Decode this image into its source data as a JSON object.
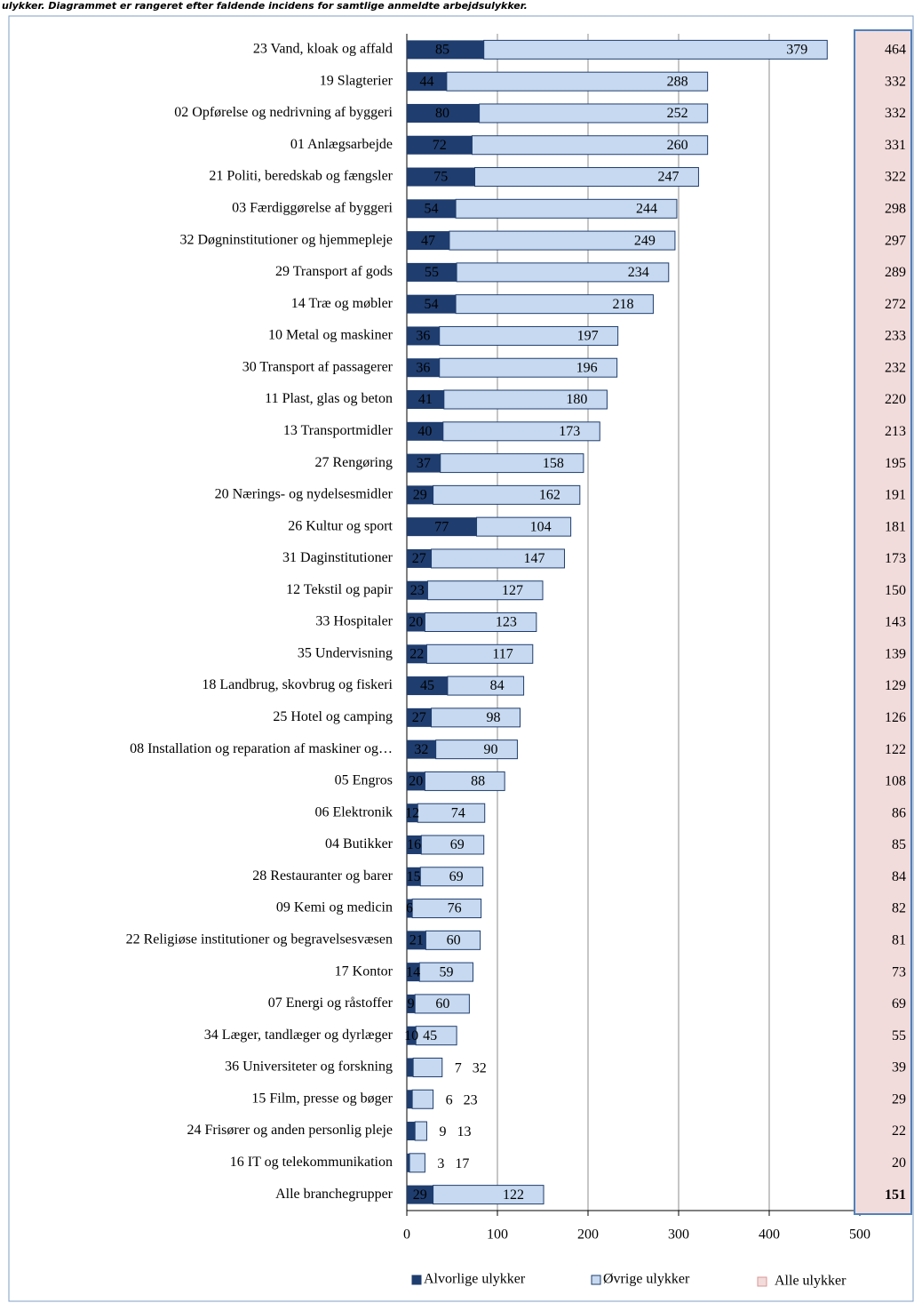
{
  "caption": "ulykker. Diagrammet er rangeret efter faldende incidens for samtlige anmeldte arbejdsulykker.",
  "chart_data": {
    "type": "stacked-barh",
    "categories": [
      "23 Vand, kloak og affald",
      "19 Slagterier",
      "02 Opførelse og nedrivning af byggeri",
      "01 Anlægsarbejde",
      "21 Politi, beredskab og fængsler",
      "03 Færdiggørelse af byggeri",
      "32 Døgninstitutioner og hjemmepleje",
      "29 Transport af gods",
      "14 Træ og møbler",
      "10 Metal og maskiner",
      "30 Transport af passagerer",
      "11 Plast, glas og beton",
      "13 Transportmidler",
      "27 Rengøring",
      "20 Nærings- og nydelsesmidler",
      "26 Kultur og sport",
      "31 Daginstitutioner",
      "12 Tekstil og papir",
      "33 Hospitaler",
      "35 Undervisning",
      "18 Landbrug, skovbrug og fiskeri",
      "25 Hotel og camping",
      "08 Installation og reparation af maskiner og…",
      "05 Engros",
      "06 Elektronik",
      "04 Butikker",
      "28 Restauranter og barer",
      "09 Kemi og medicin",
      "22 Religiøse institutioner og begravelsesvæsen",
      "17 Kontor",
      "07 Energi og råstoffer",
      "34 Læger, tandlæger og dyrlæger",
      "36 Universiteter og forskning",
      "15 Film, presse og bøger",
      "24 Frisører og anden personlig pleje",
      "16 IT og telekommunikation",
      "Alle branchegrupper"
    ],
    "series": [
      {
        "name": "Alvorlige ulykker",
        "color": "#1f3d6e",
        "values": [
          85,
          44,
          80,
          72,
          75,
          54,
          47,
          55,
          54,
          36,
          36,
          41,
          40,
          37,
          29,
          77,
          27,
          23,
          20,
          22,
          45,
          27,
          32,
          20,
          12,
          16,
          15,
          6,
          21,
          14,
          9,
          10,
          7,
          6,
          9,
          3,
          29
        ]
      },
      {
        "name": "Øvrige ulykker",
        "color": "#c6d9f0",
        "values": [
          379,
          288,
          252,
          260,
          247,
          244,
          249,
          234,
          218,
          197,
          196,
          180,
          173,
          158,
          162,
          104,
          147,
          127,
          123,
          117,
          84,
          98,
          90,
          88,
          74,
          69,
          69,
          76,
          60,
          59,
          60,
          45,
          32,
          23,
          13,
          17,
          122
        ]
      }
    ],
    "totals": {
      "name": "Alle ulykker",
      "color": "#f2dcdb",
      "values": [
        464,
        332,
        332,
        331,
        322,
        298,
        297,
        289,
        272,
        233,
        232,
        220,
        213,
        195,
        191,
        181,
        173,
        150,
        143,
        139,
        129,
        126,
        122,
        108,
        86,
        85,
        84,
        82,
        81,
        73,
        69,
        55,
        39,
        29,
        22,
        20,
        151
      ]
    },
    "xlim": [
      0,
      500
    ],
    "xticks": [
      0,
      100,
      200,
      300,
      400,
      500
    ],
    "grid": true
  }
}
